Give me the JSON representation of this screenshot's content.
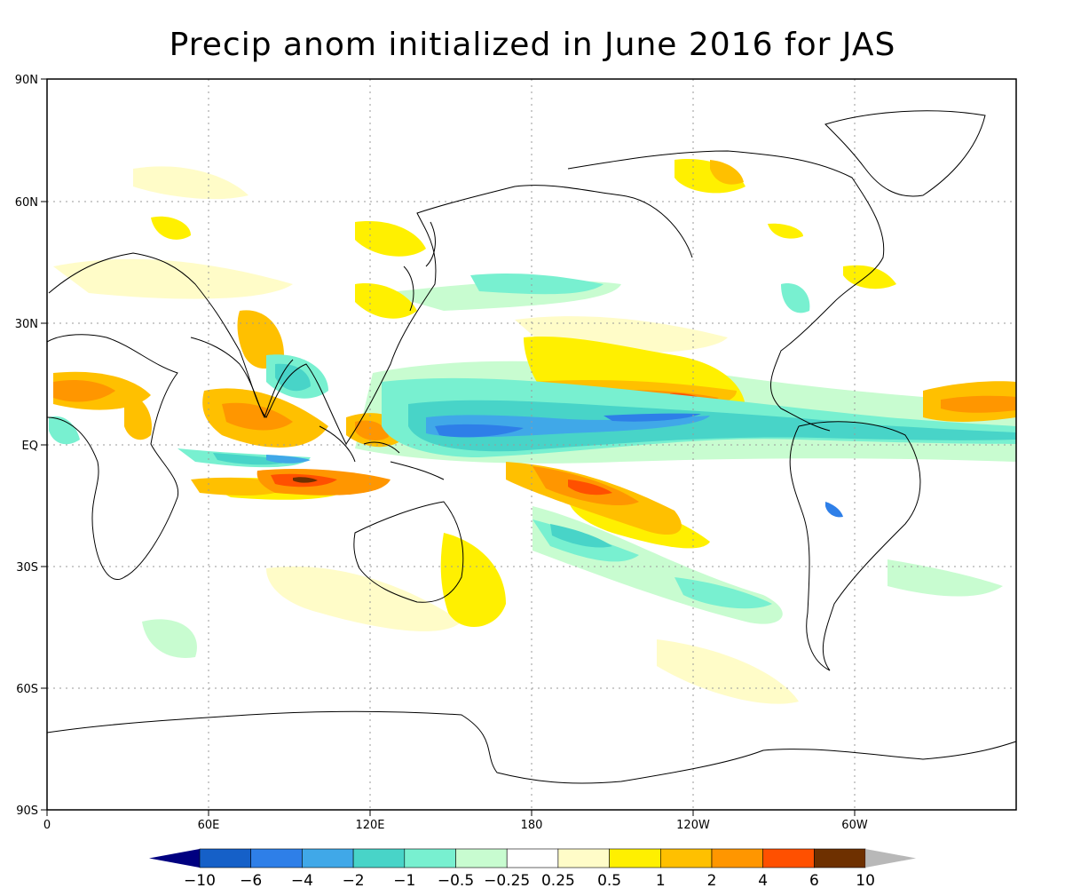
{
  "title": "Precip anom initialized in June 2016 for JAS",
  "axes": {
    "lat_ticks": [
      "90N",
      "60N",
      "30N",
      "EQ",
      "30S",
      "60S",
      "90S"
    ],
    "lon_ticks": [
      "0",
      "60E",
      "120E",
      "180",
      "120W",
      "60W"
    ],
    "lon_range": [
      0,
      360
    ],
    "lat_range": [
      -90,
      90
    ],
    "grid": "dotted"
  },
  "colorbar": {
    "labels": [
      "-10",
      "-6",
      "-4",
      "-2",
      "-1",
      "-0.5",
      "-0.25",
      "0.25",
      "0.5",
      "1",
      "2",
      "4",
      "6",
      "10"
    ],
    "colors": [
      "#000080",
      "#1560c8",
      "#2e7fe8",
      "#40a8e8",
      "#48d4c8",
      "#78f0d0",
      "#c8fcd0",
      "#ffffff",
      "#fffcc8",
      "#fff000",
      "#ffc000",
      "#ff9600",
      "#ff5000",
      "#6e3000",
      "#b8b8b8"
    ]
  },
  "colors": {
    "wet_strong": "#2e7fe8",
    "wet_mid": "#40a8e8",
    "wet_light": "#48d4c8",
    "wet_faint": "#c8fcd0",
    "dry_faint": "#fffcc8",
    "dry_light": "#fff000",
    "dry_mid": "#ffc000",
    "dry_strong": "#ff9600",
    "dry_very": "#ff5000",
    "dry_extreme": "#6e3000",
    "coast": "#000000"
  }
}
